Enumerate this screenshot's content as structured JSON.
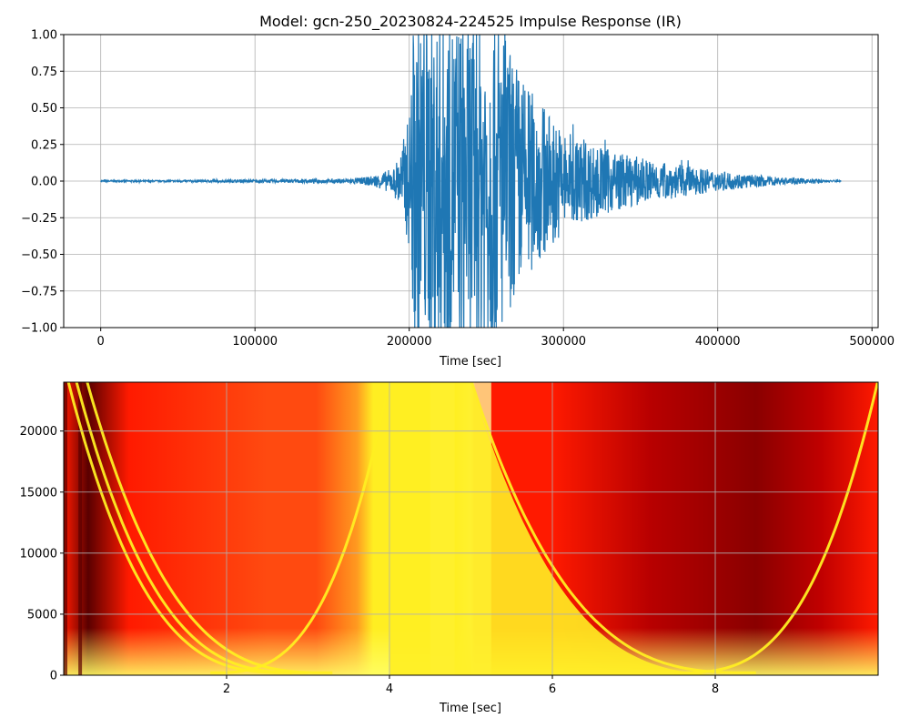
{
  "chart_data": [
    {
      "type": "line",
      "title": "Model: gcn-250_20230824-224525 Impulse Response (IR)",
      "xlabel": "Time [sec]",
      "ylabel": "",
      "xlim": [
        -24000,
        504000
      ],
      "ylim": [
        -1.0,
        1.0
      ],
      "x_ticks": [
        0,
        100000,
        200000,
        300000,
        400000,
        500000
      ],
      "x_tick_labels": [
        "0",
        "100000",
        "200000",
        "300000",
        "400000",
        "500000"
      ],
      "y_ticks": [
        -1.0,
        -0.75,
        -0.5,
        -0.25,
        0.0,
        0.25,
        0.5,
        0.75,
        1.0
      ],
      "y_tick_labels": [
        "−1.00",
        "−0.75",
        "−0.50",
        "−0.25",
        "0.00",
        "0.25",
        "0.50",
        "0.75",
        "1.00"
      ],
      "grid": true,
      "color": "#1f77b4",
      "series": [
        {
          "x": [
            0,
            40000,
            80000,
            120000,
            150000,
            170000,
            180000,
            190000,
            195000,
            200000,
            203000,
            210000,
            220000,
            230000,
            240000,
            250000,
            258000,
            265000,
            275000,
            290000,
            300000,
            320000,
            340000,
            360000,
            380000,
            400000,
            420000,
            440000,
            460000,
            480000
          ],
          "y": [
            0.005,
            0.005,
            0.008,
            0.01,
            0.012,
            0.02,
            0.04,
            0.08,
            0.2,
            0.4,
            1.0,
            1.0,
            1.0,
            1.0,
            1.0,
            1.0,
            1.0,
            0.8,
            0.6,
            0.42,
            0.3,
            0.22,
            0.16,
            0.12,
            0.09,
            0.06,
            0.04,
            0.025,
            0.012,
            0.004
          ]
        }
      ]
    },
    {
      "type": "heatmap",
      "title": "",
      "xlabel": "Time [sec]",
      "ylabel": "",
      "xlim": [
        0,
        10
      ],
      "ylim": [
        0,
        24000
      ],
      "x_ticks": [
        2,
        4,
        6,
        8
      ],
      "x_tick_labels": [
        "2",
        "4",
        "6",
        "8"
      ],
      "y_ticks": [
        0,
        5000,
        10000,
        15000,
        20000
      ],
      "y_tick_labels": [
        "0",
        "5000",
        "10000",
        "15000",
        "20000"
      ],
      "grid": true,
      "colormap": "hot",
      "colors": {
        "dark": "#5a0000",
        "red": "#ff1a00",
        "orange": "#ff4a10",
        "yellow": "#ffee22",
        "light": "#ffffa0"
      },
      "sweeps": [
        {
          "direction": "down",
          "t_start": 0.05,
          "t_end": 2.8
        },
        {
          "direction": "down",
          "t_start": 0.15,
          "t_end": 3.0
        },
        {
          "direction": "down",
          "t_start": 0.28,
          "t_end": 3.3
        },
        {
          "direction": "down",
          "t_start": 5.0,
          "t_end": 8.5
        },
        {
          "direction": "up",
          "t_start": 1.8,
          "t_end": 4.0
        },
        {
          "direction": "up",
          "t_start": 7.5,
          "t_end": 10.0
        }
      ],
      "bright_bands": [
        {
          "t_start": 4.5,
          "t_end": 4.8
        },
        {
          "t_start": 5.0,
          "t_end": 5.25
        }
      ],
      "dark_stripes": [
        0.0,
        0.18
      ]
    }
  ]
}
